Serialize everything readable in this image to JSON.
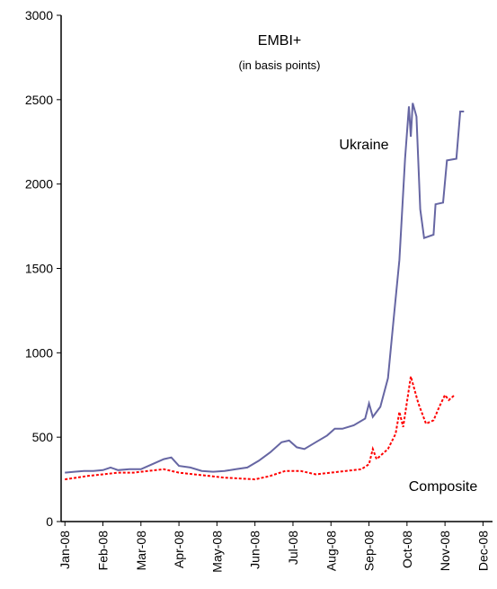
{
  "chart_data": {
    "type": "line",
    "title": "EMBI+",
    "subtitle": "(in basis points)",
    "annotations": [
      "Ukraine",
      "Composite"
    ],
    "xlim": [
      -0.1,
      11.25
    ],
    "xticks": [
      {
        "value": 0,
        "label": "Jan-08"
      },
      {
        "value": 1,
        "label": "Feb-08"
      },
      {
        "value": 2,
        "label": "Mar-08"
      },
      {
        "value": 3,
        "label": "Apr-08"
      },
      {
        "value": 4,
        "label": "May-08"
      },
      {
        "value": 5,
        "label": "Jun-08"
      },
      {
        "value": 6,
        "label": "Jul-08"
      },
      {
        "value": 7,
        "label": "Aug-08"
      },
      {
        "value": 8,
        "label": "Sep-08"
      },
      {
        "value": 9,
        "label": "Oct-08"
      },
      {
        "value": 10,
        "label": "Nov-08"
      },
      {
        "value": 11,
        "label": "Dec-08"
      }
    ],
    "ylim": [
      0,
      3000
    ],
    "yticks": [
      0,
      500,
      1000,
      1500,
      2000,
      2500,
      3000
    ],
    "grid": false,
    "series": [
      {
        "name": "Ukraine",
        "color": "#6666a3",
        "style": "solid",
        "x": [
          0,
          0.25,
          0.5,
          0.75,
          1.0,
          1.2,
          1.4,
          1.7,
          2.0,
          2.3,
          2.6,
          2.8,
          3.0,
          3.3,
          3.6,
          3.9,
          4.2,
          4.5,
          4.8,
          5.1,
          5.4,
          5.7,
          5.9,
          6.1,
          6.3,
          6.6,
          6.9,
          7.1,
          7.3,
          7.6,
          7.9,
          8.0,
          8.1,
          8.3,
          8.5,
          8.65,
          8.8,
          8.95,
          9.05,
          9.1,
          9.15,
          9.25,
          9.35,
          9.45,
          9.7,
          9.75,
          9.95,
          10.05,
          10.3,
          10.4,
          10.5
        ],
        "values": [
          290,
          295,
          300,
          300,
          305,
          320,
          305,
          310,
          310,
          340,
          370,
          380,
          330,
          320,
          300,
          295,
          300,
          310,
          320,
          360,
          410,
          470,
          480,
          440,
          430,
          470,
          510,
          550,
          550,
          570,
          610,
          700,
          620,
          680,
          850,
          1200,
          1550,
          2150,
          2460,
          2280,
          2480,
          2400,
          1850,
          1680,
          1700,
          1880,
          1890,
          2140,
          2150,
          2430,
          2430
        ]
      },
      {
        "name": "Composite",
        "color": "#ff0000",
        "style": "dotted",
        "x": [
          0,
          0.3,
          0.6,
          1.0,
          1.4,
          1.8,
          2.2,
          2.6,
          3.0,
          3.4,
          3.8,
          4.2,
          4.6,
          5.0,
          5.4,
          5.8,
          6.2,
          6.6,
          7.0,
          7.4,
          7.8,
          8.0,
          8.1,
          8.2,
          8.5,
          8.7,
          8.8,
          8.9,
          9.1,
          9.3,
          9.5,
          9.7,
          9.85,
          10.0,
          10.1,
          10.25
        ],
        "values": [
          250,
          260,
          270,
          280,
          290,
          290,
          300,
          310,
          290,
          280,
          270,
          260,
          255,
          250,
          270,
          300,
          300,
          280,
          290,
          300,
          310,
          340,
          430,
          370,
          430,
          520,
          650,
          560,
          860,
          700,
          580,
          600,
          680,
          750,
          720,
          750
        ]
      }
    ]
  }
}
